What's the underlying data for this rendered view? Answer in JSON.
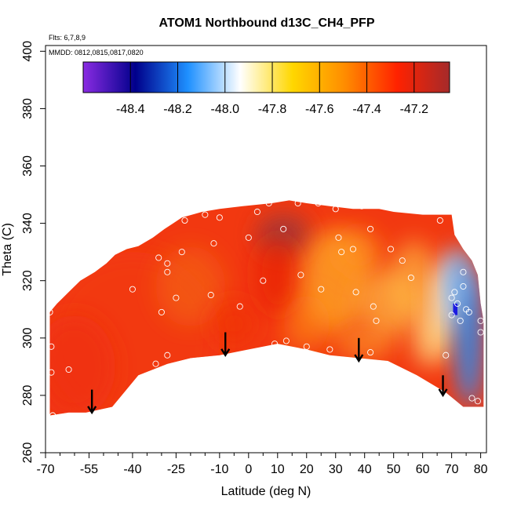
{
  "chart_data": {
    "type": "heatmap",
    "title": "ATOM1 Northbound d13C_CH4_PFP",
    "subtitle_flights": "Flts: 6,7,8,9",
    "subtitle_dates": "MMDD: 0812,0815,0817,0820",
    "xlabel": "Latitude (deg N)",
    "ylabel": "Theta (C)",
    "xlim": [
      -70,
      82
    ],
    "ylim": [
      260,
      402
    ],
    "x_ticks": [
      -70,
      -55,
      -40,
      -25,
      -10,
      0,
      10,
      20,
      30,
      40,
      50,
      60,
      70,
      80
    ],
    "x_tick_labels": [
      "-70",
      "-55",
      "-40",
      "-25",
      "-10",
      "0",
      "10",
      "20",
      "30",
      "40",
      "50",
      "60",
      "70",
      "80"
    ],
    "x_minor_ticks": [
      -65,
      -60,
      -50,
      -45,
      -35,
      -30,
      -20,
      -15,
      -5,
      5,
      15,
      25,
      35,
      45,
      55,
      65,
      75
    ],
    "y_ticks": [
      260,
      280,
      300,
      320,
      340,
      360,
      380,
      400
    ],
    "y_tick_labels": [
      "260",
      "280",
      "300",
      "320",
      "340",
      "360",
      "380",
      "400"
    ],
    "colorbar": {
      "range": [
        -48.6,
        -47.05
      ],
      "ticks": [
        -48.4,
        -48.2,
        -48.0,
        -47.8,
        -47.6,
        -47.4,
        -47.2
      ],
      "tick_labels": [
        "-48.4",
        "-48.2",
        "-48.0",
        "-47.8",
        "-47.6",
        "-47.4",
        "-47.2"
      ],
      "colors": [
        "#8a2be2",
        "#00008b",
        "#1e90ff",
        "#ffffff",
        "#ffd700",
        "#ff8c00",
        "#ff2200",
        "#a52a2a"
      ]
    },
    "field_top": [
      [
        -68.5,
        309
      ],
      [
        -66,
        312
      ],
      [
        -62,
        316
      ],
      [
        -58,
        320
      ],
      [
        -53,
        323
      ],
      [
        -49,
        326
      ],
      [
        -46,
        329
      ],
      [
        -42,
        331
      ],
      [
        -38,
        332
      ],
      [
        -33,
        335
      ],
      [
        -29,
        338
      ],
      [
        -26,
        340
      ],
      [
        -23,
        342
      ],
      [
        -16,
        344
      ],
      [
        -10,
        345
      ],
      [
        -2,
        346
      ],
      [
        8,
        347
      ],
      [
        14,
        348
      ],
      [
        20,
        347
      ],
      [
        28,
        346
      ],
      [
        36,
        345
      ],
      [
        45,
        345
      ],
      [
        50,
        344
      ],
      [
        60,
        343
      ],
      [
        70,
        343
      ],
      [
        71,
        336
      ],
      [
        74,
        331
      ],
      [
        77,
        327
      ],
      [
        79,
        322
      ],
      [
        80,
        312
      ],
      [
        81,
        306
      ]
    ],
    "field_bottom": [
      [
        81,
        276
      ],
      [
        78,
        276
      ],
      [
        74,
        276
      ],
      [
        68,
        281
      ],
      [
        58,
        287
      ],
      [
        48,
        292
      ],
      [
        38,
        293
      ],
      [
        28,
        294
      ],
      [
        20,
        296
      ],
      [
        10,
        298
      ],
      [
        0,
        296
      ],
      [
        -10,
        294
      ],
      [
        -20,
        293
      ],
      [
        -28,
        291
      ],
      [
        -38,
        287
      ],
      [
        -47,
        276
      ],
      [
        -56,
        274
      ],
      [
        -62,
        274
      ],
      [
        -68.5,
        273
      ]
    ],
    "colored_rect_cells": [
      {
        "x": [
          70.5,
          72
        ],
        "y": [
          308,
          312
        ],
        "color": "#1b1be0"
      }
    ],
    "blobs": [
      {
        "x": -40,
        "y": 300,
        "rx": 30,
        "ry": 30,
        "color": "#f23a10",
        "opacity": 0.75
      },
      {
        "x": -60,
        "y": 290,
        "rx": 14,
        "ry": 18,
        "color": "#f03010",
        "opacity": 0.7
      },
      {
        "x": -20,
        "y": 318,
        "rx": 12,
        "ry": 14,
        "color": "#f46a12",
        "opacity": 0.55
      },
      {
        "x": 12,
        "y": 336,
        "rx": 9,
        "ry": 7,
        "color": "#9c3c3c",
        "opacity": 0.9
      },
      {
        "x": 10,
        "y": 322,
        "rx": 8,
        "ry": 14,
        "color": "#e81e00",
        "opacity": 0.6
      },
      {
        "x": -5,
        "y": 305,
        "rx": 8,
        "ry": 8,
        "color": "#f03200",
        "opacity": 0.55
      },
      {
        "x": 30,
        "y": 320,
        "rx": 12,
        "ry": 18,
        "color": "#ffb42a",
        "opacity": 0.7
      },
      {
        "x": 38,
        "y": 330,
        "rx": 8,
        "ry": 8,
        "color": "#ff9a20",
        "opacity": 0.6
      },
      {
        "x": 48,
        "y": 312,
        "rx": 10,
        "ry": 12,
        "color": "#ffc34a",
        "opacity": 0.65
      },
      {
        "x": 57,
        "y": 320,
        "rx": 8,
        "ry": 14,
        "color": "#ffc84a",
        "opacity": 0.6
      },
      {
        "x": 62,
        "y": 300,
        "rx": 6,
        "ry": 10,
        "color": "#ffe07a",
        "opacity": 0.6
      },
      {
        "x": 66,
        "y": 308,
        "rx": 5,
        "ry": 16,
        "color": "#fff3a0",
        "opacity": 0.65
      },
      {
        "x": 70,
        "y": 316,
        "rx": 5,
        "ry": 14,
        "color": "#cfeaff",
        "opacity": 0.8
      },
      {
        "x": 76,
        "y": 300,
        "rx": 5,
        "ry": 24,
        "color": "#1e90ff",
        "opacity": 0.85
      },
      {
        "x": 73,
        "y": 322,
        "rx": 4,
        "ry": 10,
        "color": "#5fb4ff",
        "opacity": 0.75
      },
      {
        "x": 20,
        "y": 305,
        "rx": 8,
        "ry": 10,
        "color": "#ff9a10",
        "opacity": 0.5
      },
      {
        "x": 40,
        "y": 298,
        "rx": 10,
        "ry": 6,
        "color": "#ffb030",
        "opacity": 0.5
      }
    ],
    "points": [
      [
        -68.5,
        309
      ],
      [
        -68,
        297
      ],
      [
        -68,
        288
      ],
      [
        -67.5,
        273
      ],
      [
        -62,
        289
      ],
      [
        -62,
        272
      ],
      [
        -40,
        317
      ],
      [
        -31,
        328
      ],
      [
        -28,
        326
      ],
      [
        -28,
        323
      ],
      [
        -23,
        330
      ],
      [
        -25,
        314
      ],
      [
        -30,
        309
      ],
      [
        -32,
        291
      ],
      [
        -28,
        294
      ],
      [
        -22,
        341
      ],
      [
        -15,
        343
      ],
      [
        -12,
        333
      ],
      [
        -10,
        342
      ],
      [
        -13,
        315
      ],
      [
        -3,
        311
      ],
      [
        0,
        335
      ],
      [
        3,
        344
      ],
      [
        7,
        347
      ],
      [
        9,
        298
      ],
      [
        5,
        320
      ],
      [
        12,
        338
      ],
      [
        13,
        299
      ],
      [
        17,
        347
      ],
      [
        18,
        322
      ],
      [
        20,
        297
      ],
      [
        24,
        347
      ],
      [
        25,
        317
      ],
      [
        28,
        296
      ],
      [
        30,
        345
      ],
      [
        31,
        335
      ],
      [
        32,
        330
      ],
      [
        36,
        331
      ],
      [
        37,
        316
      ],
      [
        39,
        346
      ],
      [
        42,
        338
      ],
      [
        42,
        295
      ],
      [
        43,
        311
      ],
      [
        44,
        306
      ],
      [
        49,
        331
      ],
      [
        53,
        327
      ],
      [
        56,
        321
      ],
      [
        66,
        341
      ],
      [
        68,
        294
      ],
      [
        70,
        314
      ],
      [
        70,
        308
      ],
      [
        71,
        316
      ],
      [
        72,
        312
      ],
      [
        73,
        306
      ],
      [
        74,
        323
      ],
      [
        74,
        318
      ],
      [
        75,
        310
      ],
      [
        76,
        309
      ],
      [
        77,
        279
      ],
      [
        79,
        278
      ],
      [
        80,
        306
      ],
      [
        80,
        302
      ],
      [
        82,
        319
      ]
    ],
    "arrows": [
      {
        "x": -54,
        "y_tail": 282,
        "y_head": 274
      },
      {
        "x": -8,
        "y_tail": 302,
        "y_head": 294
      },
      {
        "x": 38,
        "y_tail": 300,
        "y_head": 292
      },
      {
        "x": 67,
        "y_tail": 287,
        "y_head": 280
      }
    ]
  }
}
